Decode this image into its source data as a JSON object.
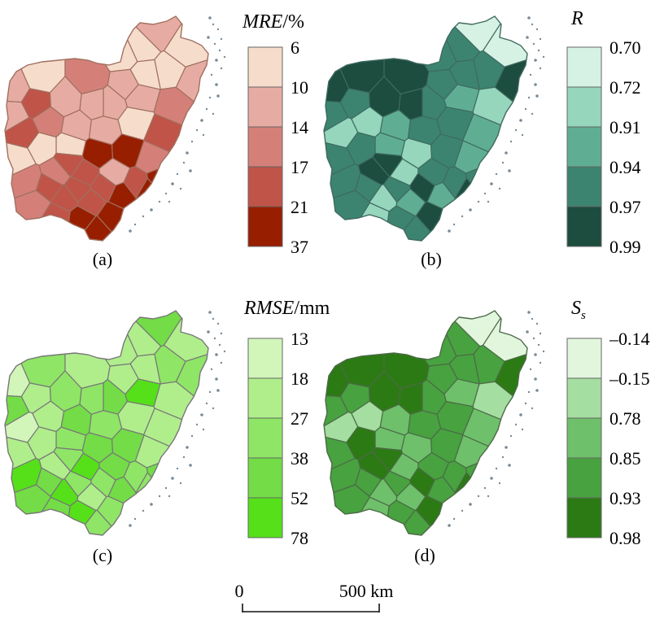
{
  "panels": [
    {
      "id": "a",
      "label": "(a)",
      "legend_title_italic": "MRE",
      "legend_title_rest": "/%",
      "legend_title_sub": "",
      "ticks": [
        "6",
        "10",
        "14",
        "17",
        "21",
        "37"
      ],
      "colors": [
        "#f6dccb",
        "#e6aca3",
        "#d48078",
        "#c05448",
        "#981e00"
      ],
      "edge_color": "#a07060",
      "region_classes": [
        1,
        0,
        0,
        0,
        1,
        0,
        0,
        1,
        0,
        1,
        2,
        1,
        1,
        2,
        3,
        0,
        1,
        1,
        3,
        1,
        3,
        2,
        1,
        1,
        4,
        2,
        4,
        0,
        0,
        0,
        2,
        2,
        3,
        1,
        3,
        2,
        3,
        3,
        4,
        4,
        4,
        3,
        4,
        4,
        3,
        3,
        3,
        3,
        4
      ]
    },
    {
      "id": "b",
      "label": "(b)",
      "legend_title_italic": "R",
      "legend_title_rest": "",
      "legend_title_sub": "",
      "ticks": [
        "0.70",
        "0.72",
        "0.91",
        "0.94",
        "0.97",
        "0.99"
      ],
      "colors": [
        "#d6f2e4",
        "#95d6bd",
        "#5fae93",
        "#3c8470",
        "#1c4d3f"
      ],
      "edge_color": "#3f6a60",
      "region_classes": [
        0,
        3,
        3,
        0,
        4,
        3,
        3,
        3,
        4,
        4,
        4,
        3,
        2,
        1,
        2,
        3,
        4,
        4,
        3,
        3,
        1,
        1,
        2,
        3,
        3,
        2,
        1,
        2,
        3,
        3,
        3,
        4,
        1,
        3,
        3,
        3,
        1,
        2,
        4,
        3,
        3,
        1,
        2,
        4,
        3,
        3,
        4,
        4,
        3
      ]
    },
    {
      "id": "c",
      "label": "(c)",
      "legend_title_italic": "RMSE",
      "legend_title_rest": "/mm",
      "legend_title_sub": "",
      "ticks": [
        "13",
        "18",
        "27",
        "38",
        "52",
        "78"
      ],
      "colors": [
        "#d2f5ba",
        "#b0ee8c",
        "#8fe566",
        "#73dc47",
        "#55e01a"
      ],
      "edge_color": "#777777",
      "region_classes": [
        3,
        1,
        1,
        1,
        2,
        2,
        1,
        1,
        2,
        0,
        1,
        3,
        4,
        1,
        1,
        1,
        2,
        2,
        1,
        3,
        0,
        1,
        3,
        2,
        3,
        1,
        3,
        2,
        1,
        1,
        4,
        1,
        4,
        3,
        2,
        3,
        4,
        1,
        2,
        2,
        4,
        3,
        3,
        2,
        3,
        2,
        2,
        2,
        3
      ]
    },
    {
      "id": "d",
      "label": "(d)",
      "legend_title_italic": "S",
      "legend_title_rest": "",
      "legend_title_sub": "s",
      "ticks": [
        "–0.14",
        "–0.15",
        "0.78",
        "0.85",
        "0.93",
        "0.98"
      ],
      "colors": [
        "#e2f6de",
        "#a4dea0",
        "#6ec06a",
        "#47a23f",
        "#2c7a14"
      ],
      "edge_color": "#4d6a48",
      "region_classes": [
        0,
        3,
        3,
        0,
        4,
        3,
        3,
        3,
        4,
        4,
        4,
        3,
        2,
        1,
        2,
        3,
        4,
        4,
        3,
        3,
        1,
        1,
        2,
        3,
        3,
        2,
        2,
        2,
        4,
        3,
        3,
        4,
        2,
        3,
        3,
        3,
        2,
        2,
        4,
        3,
        3,
        2,
        3,
        4,
        3,
        3,
        4,
        4,
        3
      ]
    }
  ],
  "scale_bar": {
    "start_label": "0",
    "end_label": "500 km"
  }
}
